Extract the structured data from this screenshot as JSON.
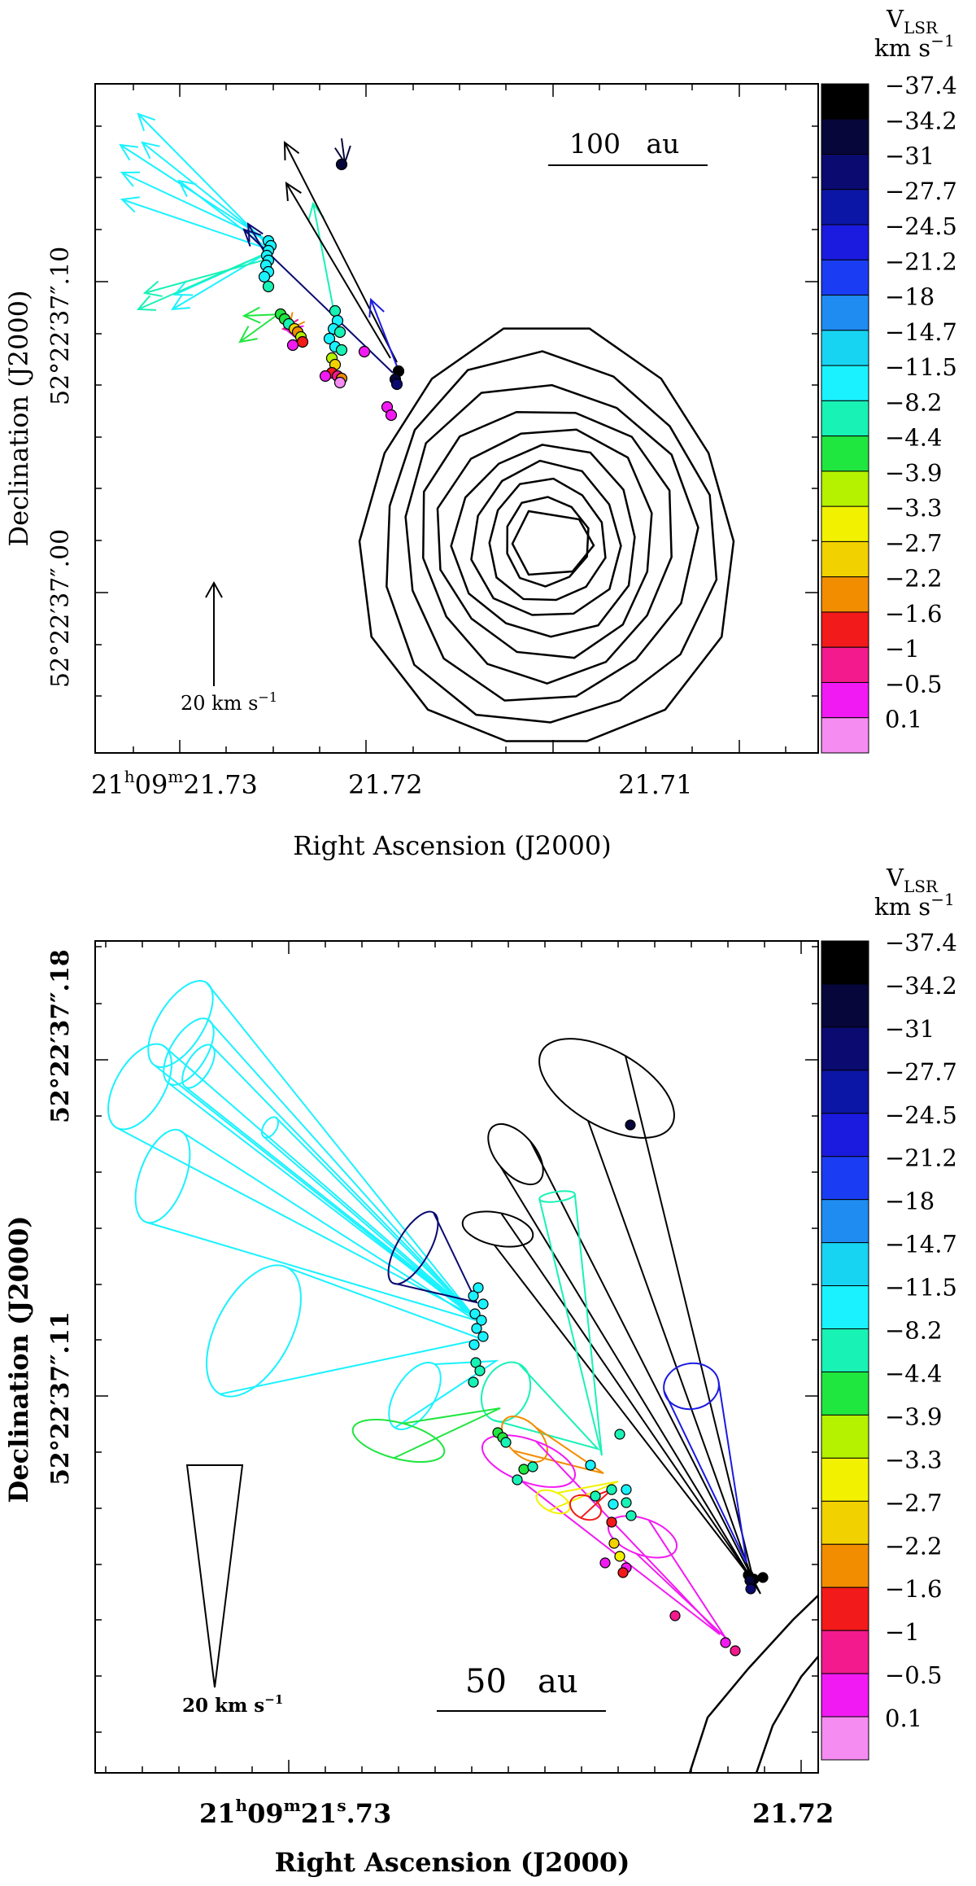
{
  "colorbar": {
    "title_line1": "V",
    "title_sub": "LSR",
    "title_line2": "km s",
    "title_sup": "−1",
    "levels": [
      "−37.4",
      "−34.2",
      "−31",
      "−27.7",
      "−24.5",
      "−21.2",
      "−18",
      "−14.7",
      "−11.5",
      "−8.2",
      "−4.4",
      "−3.9",
      "−3.3",
      "−2.7",
      "−2.2",
      "−1.6",
      "−1",
      "−0.5",
      "0.1"
    ],
    "colors": [
      "#000000",
      "#06063a",
      "#0a0a70",
      "#0b16a6",
      "#1b1be0",
      "#1a3cf2",
      "#1f8cf2",
      "#17d4f2",
      "#1af2ff",
      "#18f2b5",
      "#20e640",
      "#b4f200",
      "#f2f200",
      "#f2d100",
      "#f28d00",
      "#f21a1a",
      "#f21a8c",
      "#f21af2",
      "#f58cf2"
    ]
  },
  "chart_data": [
    {
      "type": "scatter",
      "panel": "top",
      "xlabel": "Right Ascension (J2000)",
      "ylabel": "Declination (J2000)",
      "x_ticks": [
        {
          "h": "21",
          "m": "09",
          "s": "21",
          "frac": ".73"
        },
        {
          "h": "",
          "m": "",
          "s": "21",
          "frac": ".72"
        },
        {
          "h": "",
          "m": "",
          "s": "21",
          "frac": ".71"
        }
      ],
      "y_ticks": [
        "52°22′37″.10",
        "52°22′37″.00"
      ],
      "y_tick_labels_display": [
        {
          "deg": "52°22′37",
          "arc": "″",
          "frac": ".10"
        },
        {
          "deg": "52°22′37",
          "arc": "″",
          "frac": ".00"
        }
      ],
      "scale_bar": "100   au",
      "velocity_arrow_label": "20 km s",
      "velocity_arrow_label_sup": "−1",
      "contours": "nested continuum contours (10 levels) centred near 21.7145, +37.00",
      "series": [
        {
          "vlsr": -11.5,
          "points": [
            [
              21.728,
              37.103
            ],
            [
              21.7279,
              37.099
            ],
            [
              21.7281,
              37.096
            ],
            [
              21.7279,
              37.092
            ]
          ]
        },
        {
          "vlsr": -8.2,
          "points": [
            [
              21.7275,
              37.084
            ],
            [
              21.7243,
              37.084
            ],
            [
              21.7245,
              37.08
            ],
            [
              21.7243,
              37.076
            ],
            [
              21.7245,
              37.072
            ]
          ]
        },
        {
          "vlsr": -4.4,
          "points": [
            [
              21.7256,
              37.081
            ],
            [
              21.7252,
              37.078
            ]
          ]
        },
        {
          "vlsr": -3.3,
          "points": [
            [
              21.7248,
              37.074
            ]
          ]
        },
        {
          "vlsr": -2.2,
          "points": [
            [
              21.725,
              37.071
            ]
          ]
        },
        {
          "vlsr": -1.6,
          "points": [
            [
              21.7245,
              37.069
            ]
          ]
        },
        {
          "vlsr": -1,
          "points": [
            [
              21.7228,
              37.06
            ]
          ]
        },
        {
          "vlsr": -0.5,
          "points": [
            [
              21.7218,
              37.056
            ]
          ]
        },
        {
          "vlsr": -34.2,
          "points": [
            [
              21.7233,
              37.066
            ],
            [
              21.7232,
              37.068
            ],
            [
              21.7244,
              37.136
            ]
          ]
        }
      ]
    },
    {
      "type": "scatter",
      "panel": "bottom",
      "xlabel": "Right Ascension (J2000)",
      "ylabel": "Declination (J2000)",
      "x_ticks": [
        {
          "h": "21",
          "m": "09",
          "s": "21",
          "frac": ".73"
        },
        {
          "h": "",
          "m": "",
          "s": "21",
          "frac": ".72"
        }
      ],
      "y_tick_labels_display": [
        {
          "deg": "52°22′37",
          "arc": "″",
          "frac": ".18"
        },
        {
          "deg": "52°22′37",
          "arc": "″",
          "frac": ".11"
        }
      ],
      "scale_bar": "50   au",
      "velocity_cone_label": "20 km s",
      "velocity_cone_label_sup": "−1",
      "note": "3D velocity cones of water maser features colour-coded by V_LSR"
    }
  ]
}
